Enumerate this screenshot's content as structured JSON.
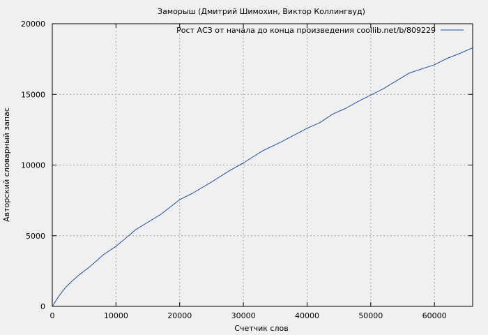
{
  "chart_data": {
    "type": "line",
    "title": "Заморыш (Дмитрий Шимохин, Виктор Коллингвуд)",
    "xlabel": "Счетчик слов",
    "ylabel": "Авторский словарный запас",
    "xlim": [
      0,
      66000
    ],
    "ylim": [
      0,
      20000
    ],
    "x_ticks": [
      "0",
      "10000",
      "20000",
      "30000",
      "40000",
      "50000",
      "60000"
    ],
    "y_ticks": [
      "0",
      "5000",
      "10000",
      "15000",
      "20000"
    ],
    "grid": true,
    "legend_position": "top-right",
    "series": [
      {
        "name": "Рост АСЗ от начала до конца произведения coollib.net/b/809229",
        "color": "#1f4fa8",
        "x": [
          0,
          1000,
          2000,
          3000,
          4000,
          5000,
          6000,
          7000,
          8000,
          9000,
          10000,
          12000,
          13000,
          15000,
          17000,
          20000,
          22000,
          25000,
          28000,
          30000,
          33000,
          36000,
          40000,
          42000,
          44000,
          46000,
          48000,
          50000,
          52000,
          56000,
          60000,
          62000,
          64000,
          66000
        ],
        "y": [
          0,
          700,
          1300,
          1750,
          2150,
          2500,
          2850,
          3250,
          3650,
          3950,
          4250,
          5000,
          5400,
          5950,
          6500,
          7550,
          8000,
          8800,
          9650,
          10150,
          11000,
          11650,
          12600,
          13000,
          13600,
          14000,
          14500,
          14950,
          15400,
          16500,
          17100,
          17550,
          17900,
          18300
        ]
      }
    ]
  }
}
